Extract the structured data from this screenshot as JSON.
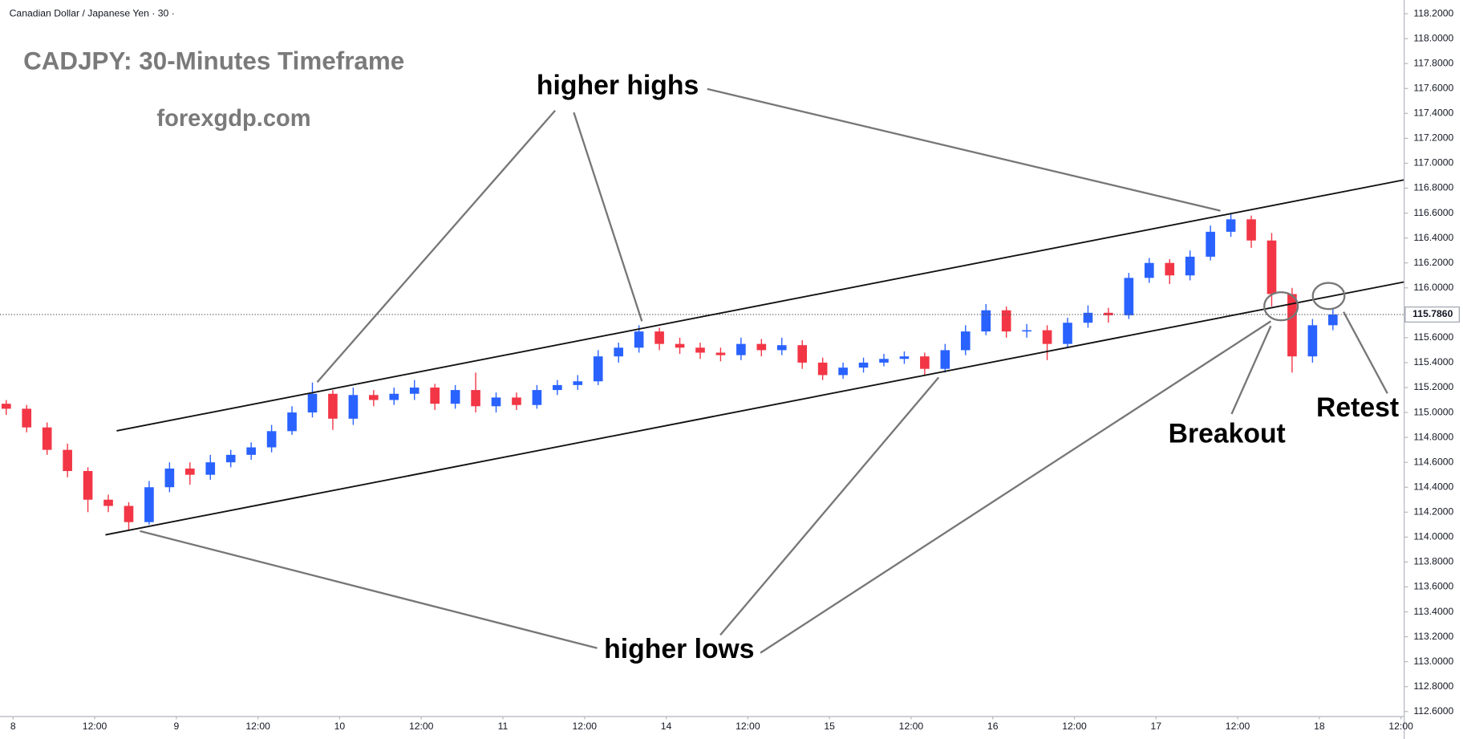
{
  "chart_data": {
    "type": "candlestick",
    "header": "Canadian Dollar / Japanese Yen · 30 ·",
    "title": "CADJPY: 30-Minutes Timeframe",
    "subtitle": "forexgdp.com",
    "annotations": {
      "highs": "higher highs",
      "lows": "higher lows",
      "breakout": "Breakout",
      "retest": "Retest"
    },
    "up_color": "#2962ff",
    "down_color": "#f23645",
    "grid": false,
    "xlim": [
      -1.92,
      204.48
    ],
    "ylim": [
      112.56,
      118.31
    ],
    "xticks": [
      {
        "value": 0,
        "label": "8"
      },
      {
        "value": 12,
        "label": "12:00"
      },
      {
        "value": 24,
        "label": "9"
      },
      {
        "value": 36,
        "label": "12:00"
      },
      {
        "value": 48,
        "label": "10"
      },
      {
        "value": 60,
        "label": "12:00"
      },
      {
        "value": 72,
        "label": "11"
      },
      {
        "value": 84,
        "label": "12:00"
      },
      {
        "value": 96,
        "label": "14"
      },
      {
        "value": 108,
        "label": "12:00"
      },
      {
        "value": 120,
        "label": "15"
      },
      {
        "value": 132,
        "label": "12:00"
      },
      {
        "value": 144,
        "label": "16"
      },
      {
        "value": 156,
        "label": "12:00"
      },
      {
        "value": 168,
        "label": "17"
      },
      {
        "value": 180,
        "label": "12:00"
      },
      {
        "value": 192,
        "label": "18"
      },
      {
        "value": 204,
        "label": "12:00"
      }
    ],
    "yticks": [
      {
        "value": 112.6,
        "label": "112.6000"
      },
      {
        "value": 112.8,
        "label": "112.8000"
      },
      {
        "value": 113.0,
        "label": "113.0000"
      },
      {
        "value": 113.2,
        "label": "113.2000"
      },
      {
        "value": 113.4,
        "label": "113.4000"
      },
      {
        "value": 113.6,
        "label": "113.6000"
      },
      {
        "value": 113.8,
        "label": "113.8000"
      },
      {
        "value": 114.0,
        "label": "114.0000"
      },
      {
        "value": 114.2,
        "label": "114.2000"
      },
      {
        "value": 114.4,
        "label": "114.4000"
      },
      {
        "value": 114.6,
        "label": "114.6000"
      },
      {
        "value": 114.8,
        "label": "114.8000"
      },
      {
        "value": 115.0,
        "label": "115.0000"
      },
      {
        "value": 115.2,
        "label": "115.2000"
      },
      {
        "value": 115.4,
        "label": "115.4000"
      },
      {
        "value": 115.6,
        "label": "115.6000"
      },
      {
        "value": 115.8,
        "label": "115.8000"
      },
      {
        "value": 116.0,
        "label": "116.0000"
      },
      {
        "value": 116.2,
        "label": "116.2000"
      },
      {
        "value": 116.4,
        "label": "116.4000"
      },
      {
        "value": 116.6,
        "label": "116.6000"
      },
      {
        "value": 116.8,
        "label": "116.8000"
      },
      {
        "value": 117.0,
        "label": "117.0000"
      },
      {
        "value": 117.2,
        "label": "117.2000"
      },
      {
        "value": 117.4,
        "label": "117.4000"
      },
      {
        "value": 117.6,
        "label": "117.6000"
      },
      {
        "value": 117.8,
        "label": "117.8000"
      },
      {
        "value": 118.0,
        "label": "118.0000"
      },
      {
        "value": 118.2,
        "label": "118.2000"
      }
    ],
    "last_price": {
      "value": 115.786,
      "label": "115.7860"
    },
    "candles": {
      "x": [
        -1,
        2,
        5,
        8,
        11,
        14,
        17,
        20,
        23,
        26,
        29,
        32,
        35,
        38,
        41,
        44,
        47,
        50,
        53,
        56,
        59,
        62,
        65,
        68,
        71,
        74,
        77,
        80,
        83,
        86,
        89,
        92,
        95,
        98,
        101,
        104,
        107,
        110,
        113,
        116,
        119,
        122,
        125,
        128,
        131,
        134,
        137,
        140,
        143,
        146,
        149,
        152,
        155,
        158,
        161,
        164,
        167,
        170,
        173,
        176,
        179,
        182,
        185,
        188,
        191,
        194
      ],
      "open": [
        115.07,
        115.03,
        114.88,
        114.7,
        114.53,
        114.3,
        114.25,
        114.12,
        114.4,
        114.55,
        114.5,
        114.6,
        114.66,
        114.72,
        114.85,
        115.0,
        115.15,
        114.95,
        115.14,
        115.1,
        115.15,
        115.2,
        115.07,
        115.18,
        115.05,
        115.12,
        115.06,
        115.18,
        115.22,
        115.25,
        115.45,
        115.52,
        115.65,
        115.55,
        115.52,
        115.48,
        115.46,
        115.55,
        115.5,
        115.54,
        115.4,
        115.3,
        115.36,
        115.4,
        115.43,
        115.45,
        115.35,
        115.5,
        115.65,
        115.82,
        115.65,
        115.66,
        115.55,
        115.72,
        115.8,
        115.78,
        116.08,
        116.2,
        116.1,
        116.25,
        116.45,
        116.55,
        116.38,
        115.95,
        115.45,
        115.7
      ],
      "high": [
        115.1,
        115.06,
        114.92,
        114.75,
        114.56,
        114.34,
        114.28,
        114.45,
        114.6,
        114.6,
        114.66,
        114.7,
        114.76,
        114.9,
        115.05,
        115.24,
        115.18,
        115.2,
        115.18,
        115.2,
        115.26,
        115.23,
        115.22,
        115.32,
        115.16,
        115.16,
        115.22,
        115.26,
        115.3,
        115.5,
        115.56,
        115.7,
        115.68,
        115.6,
        115.56,
        115.52,
        115.6,
        115.59,
        115.6,
        115.58,
        115.44,
        115.4,
        115.44,
        115.47,
        115.49,
        115.48,
        115.55,
        115.7,
        115.87,
        115.85,
        115.71,
        115.7,
        115.76,
        115.86,
        115.84,
        116.12,
        116.24,
        116.23,
        116.3,
        116.5,
        116.6,
        116.58,
        116.44,
        116.0,
        115.75,
        115.83
      ],
      "low": [
        114.98,
        114.84,
        114.66,
        114.48,
        114.2,
        114.2,
        114.05,
        114.1,
        114.36,
        114.42,
        114.46,
        114.56,
        114.62,
        114.68,
        114.82,
        114.96,
        114.86,
        114.9,
        115.05,
        115.06,
        115.1,
        115.02,
        115.03,
        115.0,
        115.0,
        115.02,
        115.03,
        115.14,
        115.18,
        115.22,
        115.4,
        115.48,
        115.5,
        115.47,
        115.43,
        115.41,
        115.42,
        115.45,
        115.46,
        115.35,
        115.26,
        115.27,
        115.32,
        115.37,
        115.39,
        115.3,
        115.32,
        115.46,
        115.62,
        115.6,
        115.6,
        115.42,
        115.52,
        115.68,
        115.72,
        115.75,
        116.04,
        116.03,
        116.06,
        116.22,
        116.41,
        116.32,
        115.85,
        115.32,
        115.4,
        115.66
      ],
      "close": [
        115.03,
        114.88,
        114.7,
        114.53,
        114.3,
        114.25,
        114.12,
        114.4,
        114.55,
        114.5,
        114.6,
        114.66,
        114.72,
        114.85,
        115.0,
        115.15,
        114.95,
        115.14,
        115.1,
        115.15,
        115.2,
        115.07,
        115.18,
        115.05,
        115.12,
        115.06,
        115.18,
        115.22,
        115.25,
        115.45,
        115.52,
        115.65,
        115.55,
        115.52,
        115.48,
        115.46,
        115.55,
        115.5,
        115.54,
        115.4,
        115.3,
        115.36,
        115.4,
        115.43,
        115.45,
        115.35,
        115.5,
        115.65,
        115.82,
        115.65,
        115.66,
        115.55,
        115.72,
        115.8,
        115.78,
        116.08,
        116.2,
        116.1,
        116.25,
        116.45,
        116.55,
        116.38,
        115.95,
        115.45,
        115.7,
        115.786
      ]
    }
  }
}
